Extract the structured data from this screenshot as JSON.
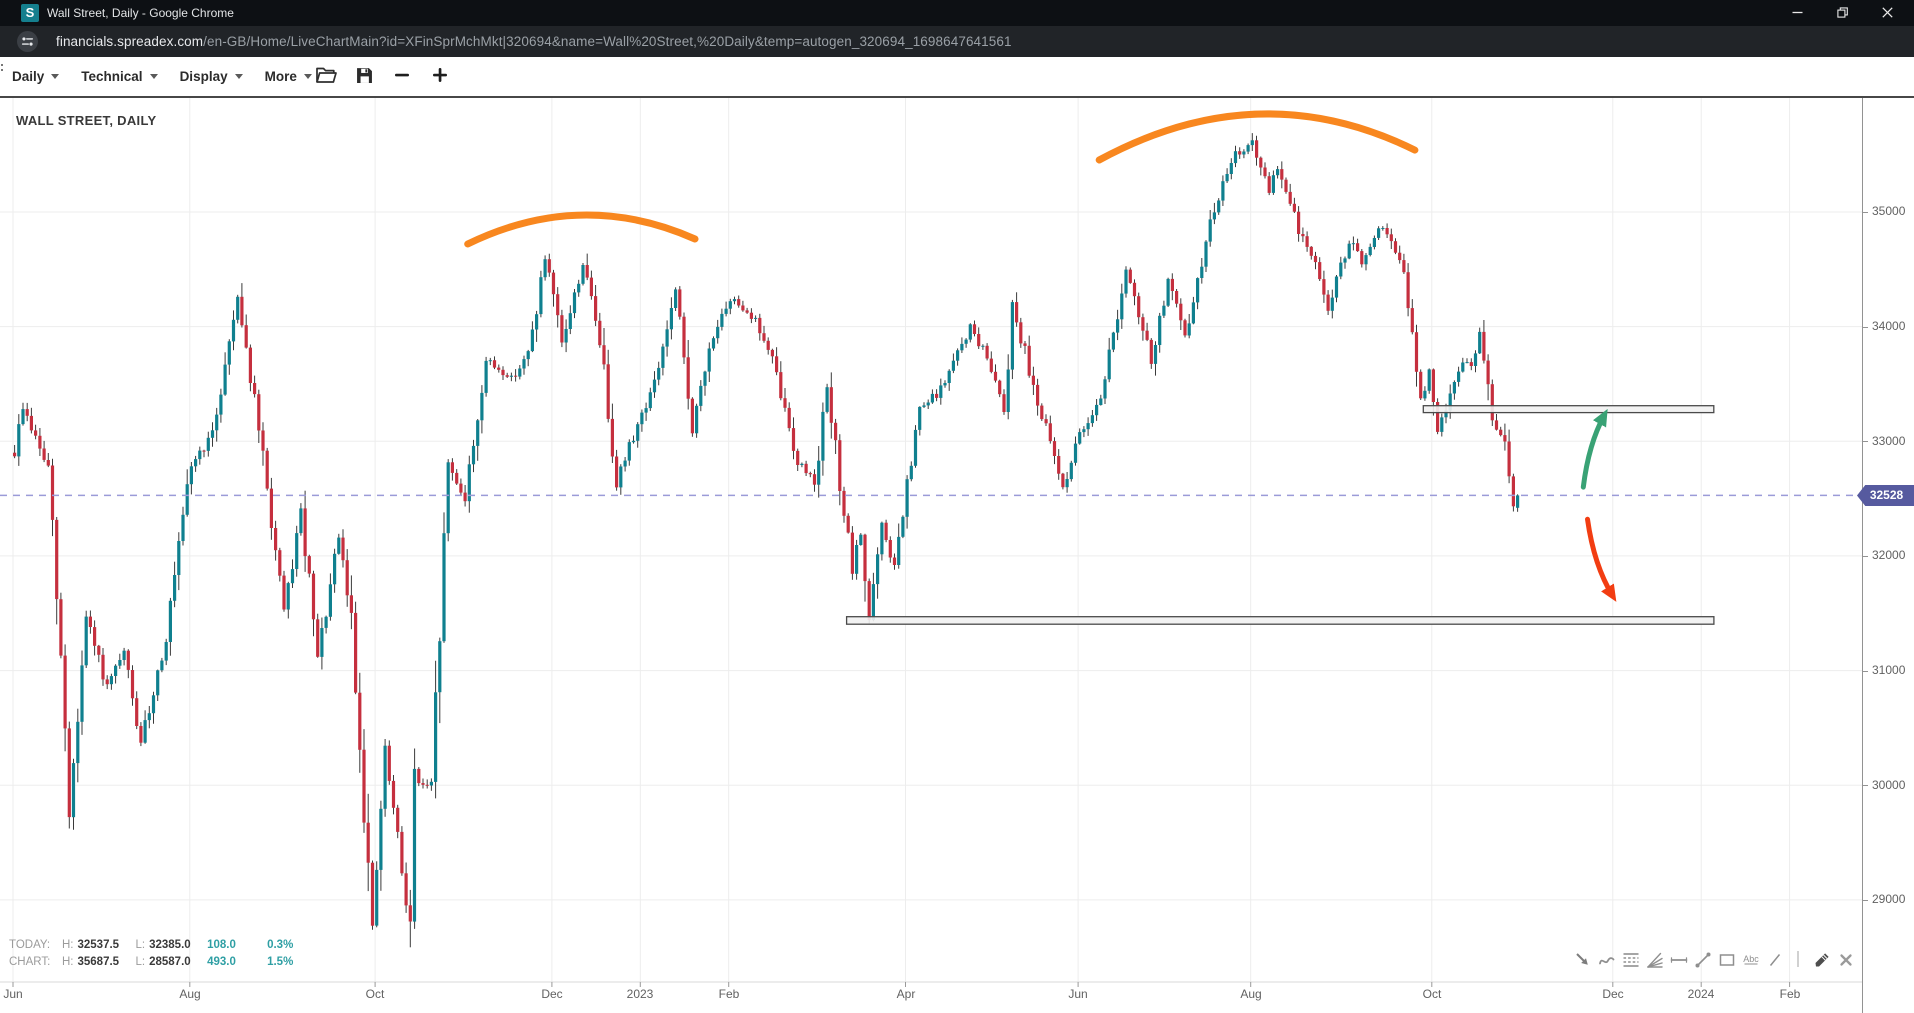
{
  "window": {
    "title": "Wall Street, Daily - Google Chrome",
    "favicon_letter": "S",
    "controls": [
      {
        "name": "minimize-button",
        "icon": "minimize-icon"
      },
      {
        "name": "restore-button",
        "icon": "restore-icon"
      },
      {
        "name": "close-button",
        "icon": "close-icon"
      }
    ]
  },
  "address_bar": {
    "icon": "site-controls-icon",
    "domain": "financials.spreadex.com",
    "path": "/en-GB/Home/LiveChartMain?id=XFinSprMchMkt|320694&name=Wall%20Street,%20Daily&temp=autogen_320694_1698647641561"
  },
  "toolbar": {
    "menus": [
      {
        "label": "Daily"
      },
      {
        "label": "Technical"
      },
      {
        "label": "Display"
      },
      {
        "label": "More"
      }
    ],
    "buttons": [
      {
        "name": "open-chart-button",
        "icon": "folder-open-icon"
      },
      {
        "name": "save-chart-button",
        "icon": "save-icon"
      },
      {
        "name": "zoom-out-button",
        "icon": "minus-icon"
      },
      {
        "name": "zoom-in-button",
        "icon": "plus-icon"
      }
    ]
  },
  "chart": {
    "title": "WALL STREET, DAILY",
    "price_badge": "32528",
    "status_rows": [
      {
        "label": "TODAY:",
        "h_label": "H:",
        "high": "32537.5",
        "l_label": "L:",
        "low": "32385.0",
        "change": "108.0",
        "pct": "0.3%"
      },
      {
        "label": "CHART:",
        "h_label": "H:",
        "high": "35687.5",
        "l_label": "L:",
        "low": "28587.0",
        "change": "493.0",
        "pct": "1.5%"
      }
    ]
  },
  "drawing_toolbar": {
    "tools": [
      "arrow-tool-icon",
      "curve-tool-icon",
      "fib-grid-tool-icon",
      "fan-lines-tool-icon",
      "horizontal-line-tool-icon",
      "trend-line-tool-icon",
      "rectangle-tool-icon",
      "text-tool-icon",
      "line-tool-icon",
      "separator",
      "marker-pen-tool-icon",
      "close-tools-icon"
    ]
  },
  "chart_data": {
    "type": "candlestick",
    "title": "WALL STREET, DAILY",
    "instrument": "Wall Street",
    "interval": "Daily",
    "x_labels": [
      {
        "label": "Jun",
        "day": 0
      },
      {
        "label": "Aug",
        "day": 42
      },
      {
        "label": "Oct",
        "day": 86
      },
      {
        "label": "Dec",
        "day": 128
      },
      {
        "label": "2023",
        "day": 149
      },
      {
        "label": "Feb",
        "day": 170
      },
      {
        "label": "Apr",
        "day": 212
      },
      {
        "label": "Jun",
        "day": 253
      },
      {
        "label": "Aug",
        "day": 294
      },
      {
        "label": "Oct",
        "day": 337
      },
      {
        "label": "Dec",
        "day": 380
      },
      {
        "label": "2024",
        "day": 401
      },
      {
        "label": "Feb",
        "day": 422
      }
    ],
    "y_ticks": [
      35000,
      34000,
      33000,
      32000,
      31000,
      30000,
      29000
    ],
    "y_range": [
      28284,
      35994
    ],
    "current_price": 32528,
    "today": {
      "high": 32537.5,
      "low": 32385.0,
      "change": 108.0,
      "change_pct": "0.3%"
    },
    "chart_stats": {
      "high": 35687.5,
      "low": 28587.0,
      "change": 493.0,
      "change_pct": "1.5%"
    },
    "days": 358,
    "price_path_anchors": [
      [
        0,
        32900
      ],
      [
        2,
        33300
      ],
      [
        8,
        32750
      ],
      [
        12,
        30500
      ],
      [
        13,
        29750
      ],
      [
        17,
        31450
      ],
      [
        22,
        30850
      ],
      [
        26,
        31150
      ],
      [
        30,
        30350
      ],
      [
        36,
        31300
      ],
      [
        42,
        32800
      ],
      [
        47,
        33050
      ],
      [
        53,
        34280
      ],
      [
        58,
        33100
      ],
      [
        64,
        31500
      ],
      [
        68,
        32380
      ],
      [
        72,
        31100
      ],
      [
        77,
        32150
      ],
      [
        80,
        31450
      ],
      [
        85,
        28750
      ],
      [
        88,
        30300
      ],
      [
        92,
        29250
      ],
      [
        94,
        28800
      ],
      [
        95,
        30050
      ],
      [
        99,
        29950
      ],
      [
        103,
        32800
      ],
      [
        107,
        32500
      ],
      [
        112,
        33700
      ],
      [
        118,
        33550
      ],
      [
        122,
        33750
      ],
      [
        126,
        34590
      ],
      [
        130,
        33850
      ],
      [
        135,
        34550
      ],
      [
        139,
        33900
      ],
      [
        143,
        32650
      ],
      [
        148,
        33150
      ],
      [
        152,
        33500
      ],
      [
        157,
        34300
      ],
      [
        161,
        33100
      ],
      [
        166,
        33950
      ],
      [
        171,
        34250
      ],
      [
        176,
        34050
      ],
      [
        180,
        33700
      ],
      [
        186,
        32820
      ],
      [
        190,
        32660
      ],
      [
        193,
        33450
      ],
      [
        199,
        31850
      ],
      [
        201,
        32200
      ],
      [
        203,
        31450
      ],
      [
        206,
        32250
      ],
      [
        209,
        31900
      ],
      [
        215,
        33270
      ],
      [
        220,
        33450
      ],
      [
        227,
        34000
      ],
      [
        232,
        33650
      ],
      [
        235,
        33300
      ],
      [
        237,
        34200
      ],
      [
        243,
        33350
      ],
      [
        249,
        32600
      ],
      [
        253,
        33050
      ],
      [
        258,
        33400
      ],
      [
        264,
        34480
      ],
      [
        270,
        33700
      ],
      [
        274,
        34400
      ],
      [
        278,
        33900
      ],
      [
        285,
        35050
      ],
      [
        290,
        35500
      ],
      [
        294,
        35600
      ],
      [
        298,
        35150
      ],
      [
        300,
        35400
      ],
      [
        305,
        34850
      ],
      [
        310,
        34450
      ],
      [
        312,
        34150
      ],
      [
        317,
        34750
      ],
      [
        320,
        34550
      ],
      [
        325,
        34880
      ],
      [
        328,
        34650
      ],
      [
        330,
        34450
      ],
      [
        334,
        33350
      ],
      [
        336,
        33600
      ],
      [
        338,
        33050
      ],
      [
        341,
        33450
      ],
      [
        344,
        33700
      ],
      [
        346,
        33650
      ],
      [
        348,
        33980
      ],
      [
        351,
        33150
      ],
      [
        354,
        33000
      ],
      [
        356,
        32420
      ],
      [
        357,
        32528
      ]
    ],
    "wick_spikes": [
      {
        "day": 13,
        "low": 29650
      },
      {
        "day": 94,
        "low": 28587
      },
      {
        "day": 294,
        "high": 35687.5
      }
    ],
    "last_candle": {
      "open": 32420,
      "close": 32528,
      "high": 32537.5,
      "low": 32385
    },
    "annotations": {
      "arcs": [
        {
          "from_day": 108,
          "from_price": 34721,
          "peak_day": 135,
          "peak_price": 34973,
          "to_day": 162,
          "to_price": 34764
        },
        {
          "from_day": 258,
          "from_price": 35453,
          "peak_day": 296,
          "peak_price": 35854,
          "to_day": 333,
          "to_price": 35540
        }
      ],
      "zones": [
        {
          "name": "resistance-zone",
          "day_from": 335,
          "day_to": 404,
          "price_top": 33310,
          "price_bottom": 33250
        },
        {
          "name": "support-zone",
          "day_from": 198,
          "day_to": 404,
          "price_top": 31470,
          "price_bottom": 31405
        }
      ],
      "arrows": [
        {
          "name": "up-scenario-arrow",
          "color": "#39a275",
          "from_day": 373,
          "from_price": 32600,
          "to_day": 378,
          "to_price": 33230
        },
        {
          "name": "down-scenario-arrow",
          "color": "#f23d12",
          "from_day": 374,
          "from_price": 32320,
          "to_day": 380,
          "to_price": 31650
        }
      ]
    },
    "colors": {
      "up": "#0f808f",
      "down": "#c52f3e",
      "wick": "#3a3a3a",
      "grid": "#ededed",
      "dashed_line": "#9b9bd8",
      "annotation": "#f8871f",
      "badge": "#565a9f"
    }
  }
}
